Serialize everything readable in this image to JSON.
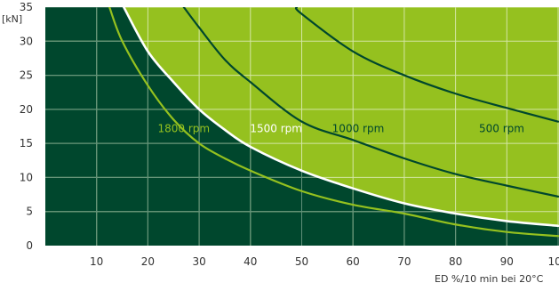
{
  "chart_data": {
    "type": "area",
    "title": "",
    "ylabel_unit": "[kN]",
    "xlabel": "ED %/10 min bei 20°C",
    "xlim": [
      0,
      100
    ],
    "ylim": [
      0,
      35
    ],
    "xticks": [
      10,
      20,
      30,
      40,
      50,
      60,
      70,
      80,
      90,
      100
    ],
    "yticks": [
      0,
      5,
      10,
      15,
      20,
      25,
      30,
      35
    ],
    "grid": true,
    "colors": {
      "dark_region": "#00472d",
      "light_region": "#95c11f",
      "curve_dark_line": "#00472d",
      "curve_light_line": "#95c11f",
      "boundary_line": "#ffffff",
      "grid_on_dark": "#5f8f79",
      "grid_on_light": "#d4e6a4"
    },
    "series": [
      {
        "name": "1800 rpm",
        "x": [
          12.5,
          15,
          20,
          25,
          30,
          35,
          40,
          50,
          60,
          70,
          80,
          90,
          100
        ],
        "y": [
          35,
          30,
          23.5,
          18.5,
          15,
          12.8,
          11,
          8,
          6,
          4.7,
          3.1,
          2,
          1.4
        ],
        "label_at": [
          27,
          17.2
        ]
      },
      {
        "name": "1500 rpm",
        "x": [
          15.3,
          20,
          25,
          30,
          35,
          40,
          50,
          60,
          70,
          80,
          90,
          100
        ],
        "y": [
          35,
          28.5,
          24,
          20,
          17,
          14.5,
          11,
          8.4,
          6.2,
          4.7,
          3.6,
          2.9
        ],
        "label_at": [
          45,
          17.2
        ]
      },
      {
        "name": "1000 rpm",
        "x": [
          27,
          30,
          35,
          40,
          50,
          60,
          70,
          80,
          90,
          100
        ],
        "y": [
          35,
          32,
          27.3,
          24,
          18.2,
          15.5,
          12.8,
          10.5,
          8.8,
          7.2
        ],
        "label_at": [
          61,
          17.2
        ]
      },
      {
        "name": "500 rpm",
        "x": [
          49,
          50,
          60,
          70,
          80,
          90,
          100
        ],
        "y": [
          35,
          34,
          28.5,
          25,
          22.3,
          20.2,
          18.2
        ],
        "label_at": [
          89,
          17.2
        ]
      }
    ]
  }
}
